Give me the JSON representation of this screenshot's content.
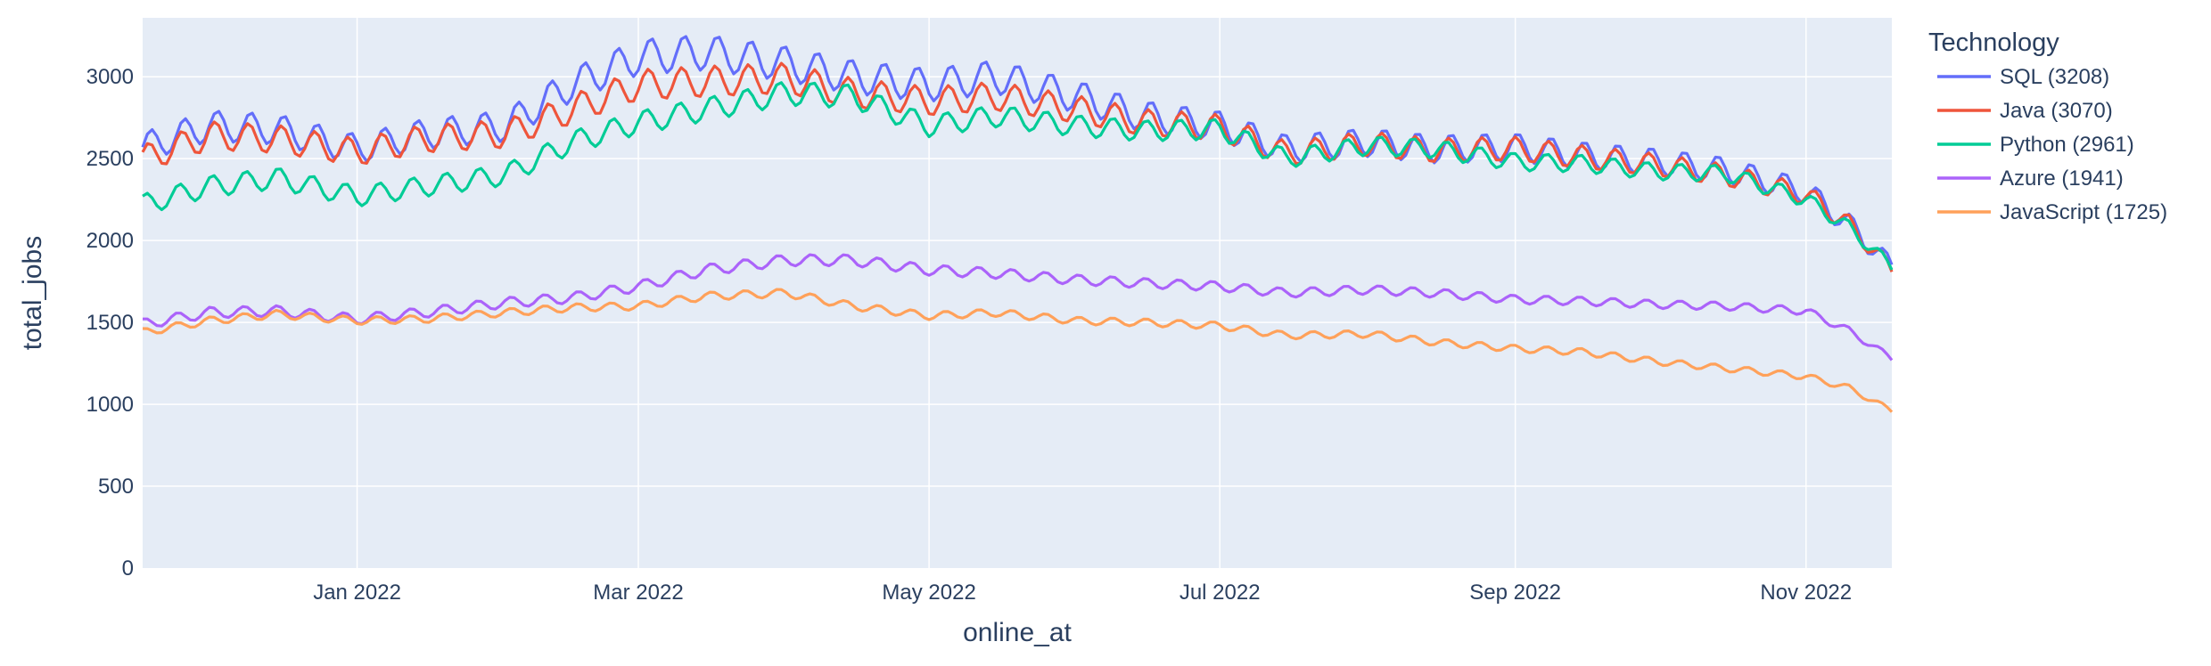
{
  "chart_data": {
    "type": "line",
    "xlabel": "online_at",
    "ylabel": "total_jobs",
    "x_range": [
      "2021-11-17",
      "2022-11-19"
    ],
    "ylim": [
      0,
      3360
    ],
    "x_ticks": [
      {
        "date": "2022-01-01",
        "label": "Jan 2022"
      },
      {
        "date": "2022-03-01",
        "label": "Mar 2022"
      },
      {
        "date": "2022-05-01",
        "label": "May 2022"
      },
      {
        "date": "2022-07-01",
        "label": "Jul 2022"
      },
      {
        "date": "2022-09-01",
        "label": "Sep 2022"
      },
      {
        "date": "2022-11-01",
        "label": "Nov 2022"
      }
    ],
    "y_ticks": [
      0,
      500,
      1000,
      1500,
      2000,
      2500,
      3000
    ],
    "grid": true,
    "legend": {
      "title": "Technology",
      "placement": "right"
    },
    "series": [
      {
        "name": "SQL (3208)",
        "color": "#636efa",
        "points": [
          [
            "2021-11-17",
            2570
          ],
          [
            "2021-12-01",
            2700
          ],
          [
            "2021-12-15",
            2680
          ],
          [
            "2022-01-01",
            2560
          ],
          [
            "2022-01-15",
            2650
          ],
          [
            "2022-02-01",
            2700
          ],
          [
            "2022-02-15",
            2950
          ],
          [
            "2022-03-01",
            3120
          ],
          [
            "2022-03-15",
            3150
          ],
          [
            "2022-04-01",
            3080
          ],
          [
            "2022-04-15",
            3000
          ],
          [
            "2022-05-01",
            2950
          ],
          [
            "2022-05-15",
            3000
          ],
          [
            "2022-06-01",
            2880
          ],
          [
            "2022-06-15",
            2760
          ],
          [
            "2022-07-01",
            2700
          ],
          [
            "2022-07-15",
            2560
          ],
          [
            "2022-08-01",
            2600
          ],
          [
            "2022-08-15",
            2560
          ],
          [
            "2022-09-01",
            2570
          ],
          [
            "2022-09-15",
            2520
          ],
          [
            "2022-10-01",
            2480
          ],
          [
            "2022-10-15",
            2430
          ],
          [
            "2022-11-01",
            2300
          ],
          [
            "2022-11-10",
            2100
          ],
          [
            "2022-11-19",
            1840
          ]
        ]
      },
      {
        "name": "Java (3070)",
        "color": "#ef553b",
        "points": [
          [
            "2021-11-17",
            2500
          ],
          [
            "2021-12-01",
            2640
          ],
          [
            "2021-12-15",
            2620
          ],
          [
            "2022-01-01",
            2540
          ],
          [
            "2022-01-15",
            2620
          ],
          [
            "2022-02-01",
            2650
          ],
          [
            "2022-02-15",
            2800
          ],
          [
            "2022-03-01",
            2950
          ],
          [
            "2022-03-15",
            2970
          ],
          [
            "2022-04-01",
            2990
          ],
          [
            "2022-04-15",
            2900
          ],
          [
            "2022-05-01",
            2850
          ],
          [
            "2022-05-15",
            2880
          ],
          [
            "2022-06-01",
            2800
          ],
          [
            "2022-06-15",
            2720
          ],
          [
            "2022-07-01",
            2690
          ],
          [
            "2022-07-15",
            2530
          ],
          [
            "2022-08-01",
            2590
          ],
          [
            "2022-08-15",
            2550
          ],
          [
            "2022-09-01",
            2560
          ],
          [
            "2022-09-15",
            2510
          ],
          [
            "2022-10-01",
            2460
          ],
          [
            "2022-10-15",
            2400
          ],
          [
            "2022-11-01",
            2280
          ],
          [
            "2022-11-10",
            2100
          ],
          [
            "2022-11-19",
            1820
          ]
        ]
      },
      {
        "name": "Python (2961)",
        "color": "#00cc96",
        "points": [
          [
            "2021-11-17",
            2220
          ],
          [
            "2021-12-01",
            2330
          ],
          [
            "2021-12-15",
            2380
          ],
          [
            "2022-01-01",
            2270
          ],
          [
            "2022-01-15",
            2330
          ],
          [
            "2022-02-01",
            2400
          ],
          [
            "2022-02-15",
            2600
          ],
          [
            "2022-03-01",
            2720
          ],
          [
            "2022-03-15",
            2800
          ],
          [
            "2022-04-01",
            2900
          ],
          [
            "2022-04-15",
            2880
          ],
          [
            "2022-05-01",
            2700
          ],
          [
            "2022-05-15",
            2760
          ],
          [
            "2022-06-01",
            2700
          ],
          [
            "2022-06-15",
            2670
          ],
          [
            "2022-07-01",
            2680
          ],
          [
            "2022-07-15",
            2500
          ],
          [
            "2022-08-01",
            2580
          ],
          [
            "2022-08-15",
            2560
          ],
          [
            "2022-09-01",
            2480
          ],
          [
            "2022-09-15",
            2470
          ],
          [
            "2022-10-01",
            2420
          ],
          [
            "2022-10-15",
            2410
          ],
          [
            "2022-11-01",
            2250
          ],
          [
            "2022-11-10",
            2080
          ],
          [
            "2022-11-19",
            1840
          ]
        ]
      },
      {
        "name": "Azure (1941)",
        "color": "#ab63fa",
        "points": [
          [
            "2021-11-17",
            1490
          ],
          [
            "2021-12-01",
            1560
          ],
          [
            "2021-12-15",
            1570
          ],
          [
            "2022-01-01",
            1520
          ],
          [
            "2022-01-15",
            1560
          ],
          [
            "2022-02-01",
            1620
          ],
          [
            "2022-02-15",
            1650
          ],
          [
            "2022-03-01",
            1720
          ],
          [
            "2022-03-15",
            1820
          ],
          [
            "2022-04-01",
            1880
          ],
          [
            "2022-04-15",
            1880
          ],
          [
            "2022-05-01",
            1820
          ],
          [
            "2022-05-15",
            1800
          ],
          [
            "2022-06-01",
            1760
          ],
          [
            "2022-06-15",
            1740
          ],
          [
            "2022-07-01",
            1720
          ],
          [
            "2022-07-15",
            1680
          ],
          [
            "2022-08-01",
            1700
          ],
          [
            "2022-08-15",
            1680
          ],
          [
            "2022-09-01",
            1640
          ],
          [
            "2022-09-15",
            1630
          ],
          [
            "2022-10-01",
            1610
          ],
          [
            "2022-10-15",
            1600
          ],
          [
            "2022-11-01",
            1570
          ],
          [
            "2022-11-10",
            1450
          ],
          [
            "2022-11-19",
            1280
          ]
        ]
      },
      {
        "name": "JavaScript (1725)",
        "color": "#ffa15a",
        "points": [
          [
            "2021-11-17",
            1440
          ],
          [
            "2021-12-01",
            1510
          ],
          [
            "2021-12-15",
            1550
          ],
          [
            "2022-01-01",
            1510
          ],
          [
            "2022-01-15",
            1520
          ],
          [
            "2022-02-01",
            1560
          ],
          [
            "2022-02-15",
            1590
          ],
          [
            "2022-03-01",
            1600
          ],
          [
            "2022-03-15",
            1660
          ],
          [
            "2022-04-01",
            1680
          ],
          [
            "2022-04-15",
            1600
          ],
          [
            "2022-05-01",
            1540
          ],
          [
            "2022-05-15",
            1560
          ],
          [
            "2022-06-01",
            1510
          ],
          [
            "2022-06-15",
            1500
          ],
          [
            "2022-07-01",
            1480
          ],
          [
            "2022-07-15",
            1420
          ],
          [
            "2022-08-01",
            1430
          ],
          [
            "2022-08-15",
            1380
          ],
          [
            "2022-09-01",
            1340
          ],
          [
            "2022-09-15",
            1320
          ],
          [
            "2022-10-01",
            1260
          ],
          [
            "2022-10-15",
            1220
          ],
          [
            "2022-11-01",
            1170
          ],
          [
            "2022-11-10",
            1100
          ],
          [
            "2022-11-19",
            960
          ]
        ]
      }
    ]
  }
}
